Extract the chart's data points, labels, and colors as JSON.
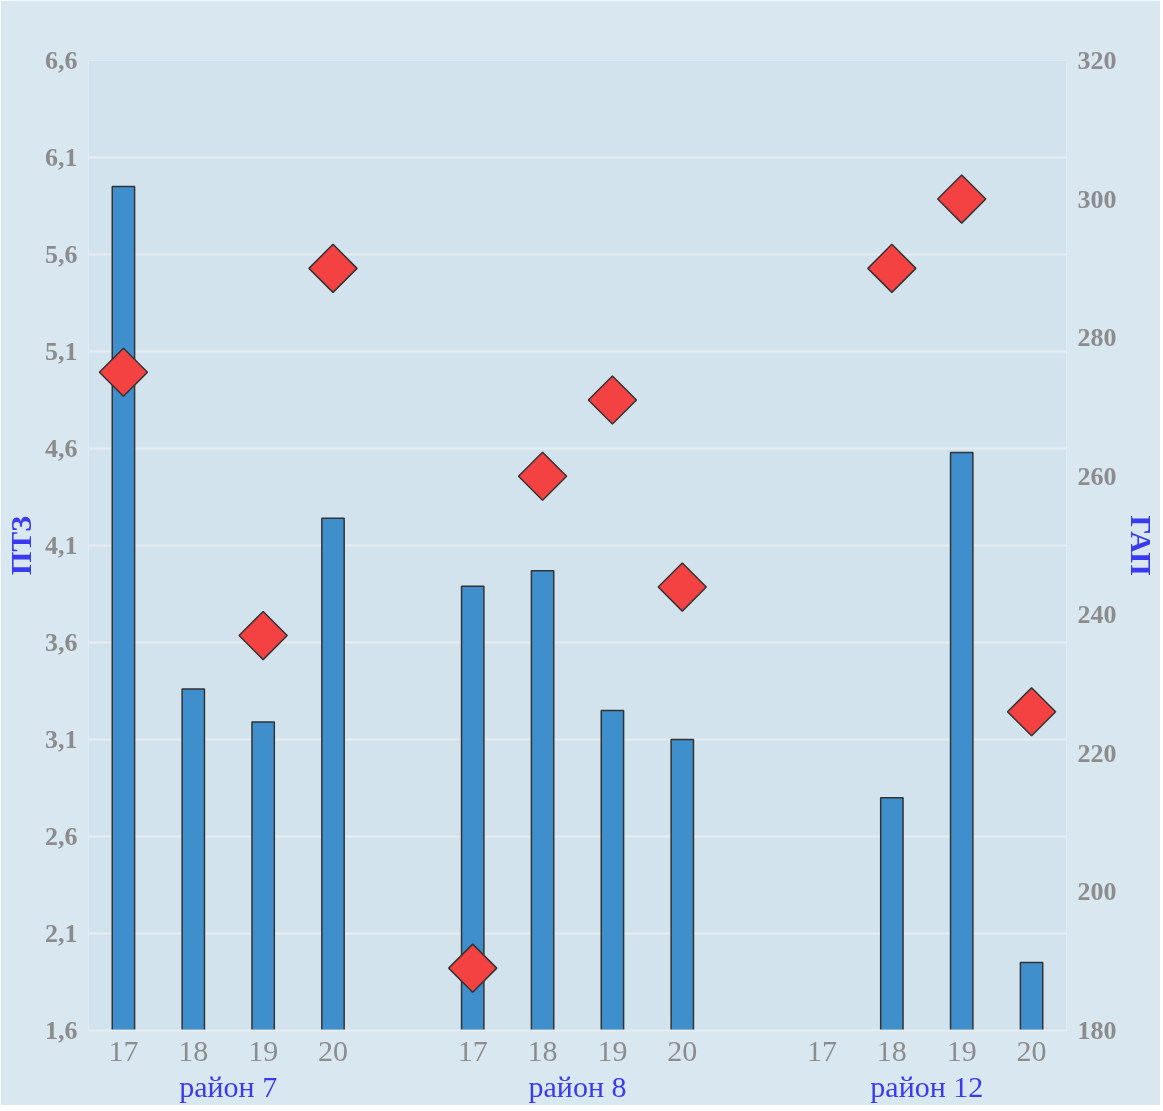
{
  "chart_data": {
    "type": "bar",
    "categories": [
      "17",
      "18",
      "19",
      "20",
      null,
      "17",
      "18",
      "19",
      "20",
      null,
      "17",
      "18",
      "19",
      "20"
    ],
    "series": [
      {
        "color": "#3f8fcc",
        "values": [
          5.95,
          3.36,
          3.19,
          4.24,
          null,
          3.89,
          3.97,
          3.25,
          3.1,
          null,
          null,
          2.8,
          4.58,
          1.95
        ]
      },
      {
        "type": "scatter",
        "axis": "y2",
        "marker": "diamond",
        "color": "#f44242",
        "values": [
          275,
          null,
          237,
          290,
          null,
          189,
          260,
          271,
          244,
          null,
          null,
          290,
          300,
          226
        ]
      }
    ],
    "ylabel": "ПТЗ",
    "y2label": "ГАП",
    "ylim": [
      1.6,
      6.6
    ],
    "yticks": [
      {
        "value": 1.6,
        "label": "1,6"
      },
      {
        "value": 2.1,
        "label": "2,1"
      },
      {
        "value": 2.6,
        "label": "2,6"
      },
      {
        "value": 3.1,
        "label": "3,1"
      },
      {
        "value": 3.6,
        "label": "3,6"
      },
      {
        "value": 4.1,
        "label": "4,1"
      },
      {
        "value": 4.6,
        "label": "4,6"
      },
      {
        "value": 5.1,
        "label": "5,1"
      },
      {
        "value": 5.6,
        "label": "5,6"
      },
      {
        "value": 6.1,
        "label": "6,1"
      },
      {
        "value": 6.6,
        "label": "6,6"
      }
    ],
    "y2lim": [
      180,
      320
    ],
    "y2ticks": [
      180,
      200,
      220,
      240,
      260,
      280,
      300,
      320
    ],
    "annotations": [
      "район 7",
      "район 8",
      "район 12"
    ],
    "grid": "y"
  }
}
